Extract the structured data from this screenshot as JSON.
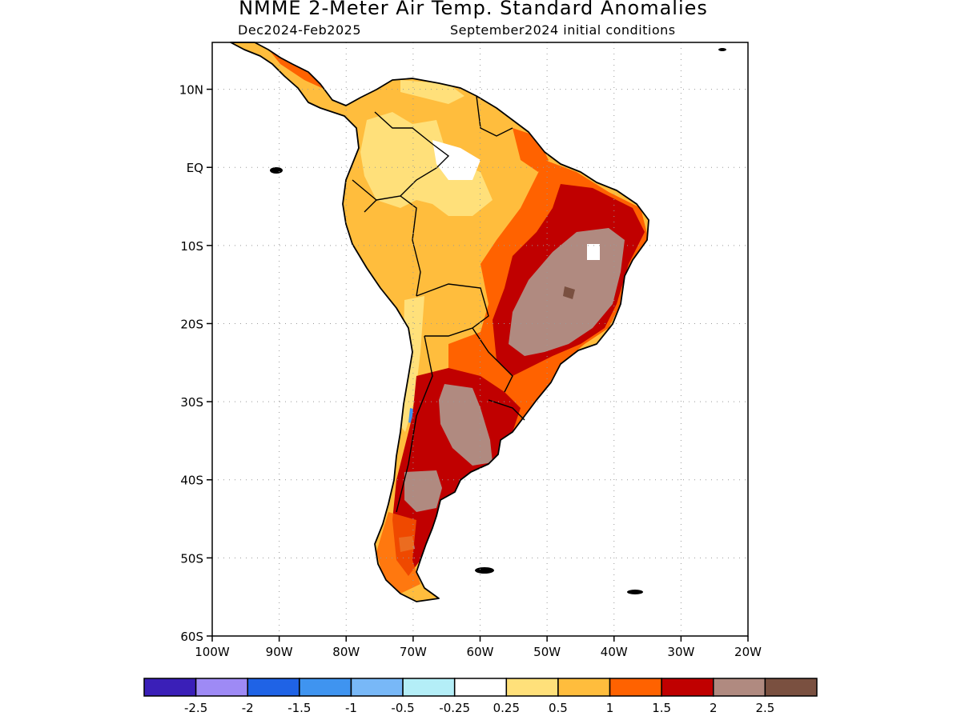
{
  "title": "NMME 2-Meter Air Temp. Standard Anomalies",
  "subtitle_left": "Dec2024-Feb2025",
  "subtitle_right": "September2024 initial conditions",
  "lat_ticks": [
    {
      "label": "10N",
      "value": 10
    },
    {
      "label": "EQ",
      "value": 0
    },
    {
      "label": "10S",
      "value": -10
    },
    {
      "label": "20S",
      "value": -20
    },
    {
      "label": "30S",
      "value": -30
    },
    {
      "label": "40S",
      "value": -40
    },
    {
      "label": "50S",
      "value": -50
    },
    {
      "label": "60S",
      "value": -60
    }
  ],
  "lon_ticks": [
    {
      "label": "100W",
      "value": -100
    },
    {
      "label": "90W",
      "value": -90
    },
    {
      "label": "80W",
      "value": -80
    },
    {
      "label": "70W",
      "value": -70
    },
    {
      "label": "60W",
      "value": -60
    },
    {
      "label": "50W",
      "value": -50
    },
    {
      "label": "40W",
      "value": -40
    },
    {
      "label": "30W",
      "value": -30
    },
    {
      "label": "20W",
      "value": -20
    }
  ],
  "map_extent": {
    "lon": [
      -100,
      -20
    ],
    "lat": [
      -60,
      16
    ]
  },
  "legend": {
    "colors": [
      "#3a1fb8",
      "#9e8af5",
      "#1f63e6",
      "#3f94f0",
      "#78b8f7",
      "#b4eef7",
      "#ffffff",
      "#ffe07a",
      "#ffbd3d",
      "#ff6200",
      "#c00000",
      "#b08a80",
      "#7a5040"
    ],
    "labels": [
      "-2.5",
      "-2",
      "-1.5",
      "-1",
      "-0.5",
      "-0.25",
      "0.25",
      "0.5",
      "1",
      "1.5",
      "2",
      "2.5"
    ]
  },
  "colors": {
    "white": "#ffffff",
    "light_yellow": "#ffe07a",
    "orange_yellow": "#ffbd3d",
    "orange": "#ff6200",
    "red": "#c00000",
    "taupe": "#b08a80",
    "brown": "#7a5040",
    "blue": "#3f94f0",
    "light_blue": "#78b8f7"
  }
}
